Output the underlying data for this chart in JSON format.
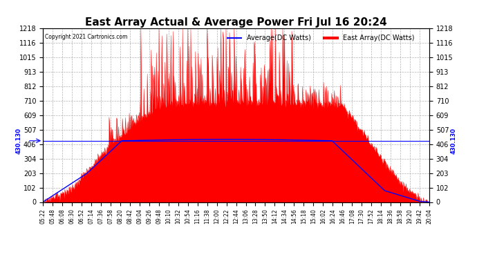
{
  "title": "East Array Actual & Average Power Fri Jul 16 20:24",
  "copyright": "Copyright 2021 Cartronics.com",
  "hline_value": 430.13,
  "hline_label": "430.130",
  "ymin": 0.0,
  "ymax": 1217.8,
  "yticks": [
    0.0,
    101.5,
    203.0,
    304.5,
    405.9,
    507.4,
    608.9,
    710.4,
    811.9,
    913.4,
    1014.9,
    1116.4,
    1217.8
  ],
  "title_fontsize": 11,
  "legend_avg_label": "Average(DC Watts)",
  "legend_east_label": "East Array(DC Watts)",
  "avg_color": "#0000ff",
  "east_color": "#ff0000",
  "fill_color": "#ff0000",
  "background_color": "#ffffff",
  "grid_color": "#aaaaaa",
  "xtick_labels": [
    "05:22",
    "05:48",
    "06:08",
    "06:30",
    "06:52",
    "07:14",
    "07:36",
    "07:58",
    "08:20",
    "08:42",
    "09:04",
    "09:26",
    "09:48",
    "10:10",
    "10:32",
    "10:54",
    "11:16",
    "11:38",
    "12:00",
    "12:22",
    "12:44",
    "13:06",
    "13:28",
    "13:50",
    "14:12",
    "14:34",
    "14:56",
    "15:18",
    "15:40",
    "16:02",
    "16:24",
    "16:46",
    "17:08",
    "17:30",
    "17:52",
    "18:14",
    "18:36",
    "18:58",
    "19:20",
    "19:42",
    "20:04"
  ]
}
